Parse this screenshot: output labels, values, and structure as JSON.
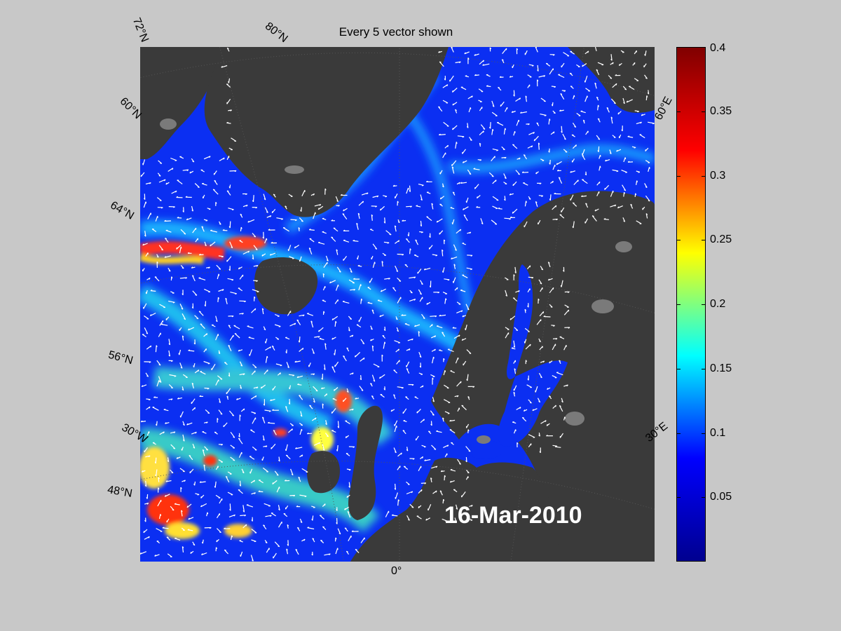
{
  "title": "Every 5 vector shown",
  "date": "16-Mar-2010",
  "latitude_labels": [
    "72°N",
    "60°N",
    "64°N",
    "56°N",
    "48°N"
  ],
  "longitude_labels": [
    "80°N",
    "60°E",
    "30°E",
    "30°W",
    "0°"
  ],
  "colorbar": {
    "min": 0,
    "max": 0.4,
    "ticks": [
      "0.4",
      "0.35",
      "0.3",
      "0.25",
      "0.2",
      "0.15",
      "0.1",
      "0.05"
    ],
    "tick_values": [
      0.4,
      0.35,
      0.3,
      0.25,
      0.2,
      0.15,
      0.1,
      0.05
    ],
    "colormap": [
      "#00008f",
      "#0000ff",
      "#00ffff",
      "#ffff00",
      "#ff0000",
      "#800000"
    ]
  },
  "colors": {
    "background": "#c8c8c8",
    "land": "#3a3a3a",
    "ice": "#7a7a7a",
    "ocean_low": "#0a2cf0",
    "vector": "#ffffff"
  }
}
